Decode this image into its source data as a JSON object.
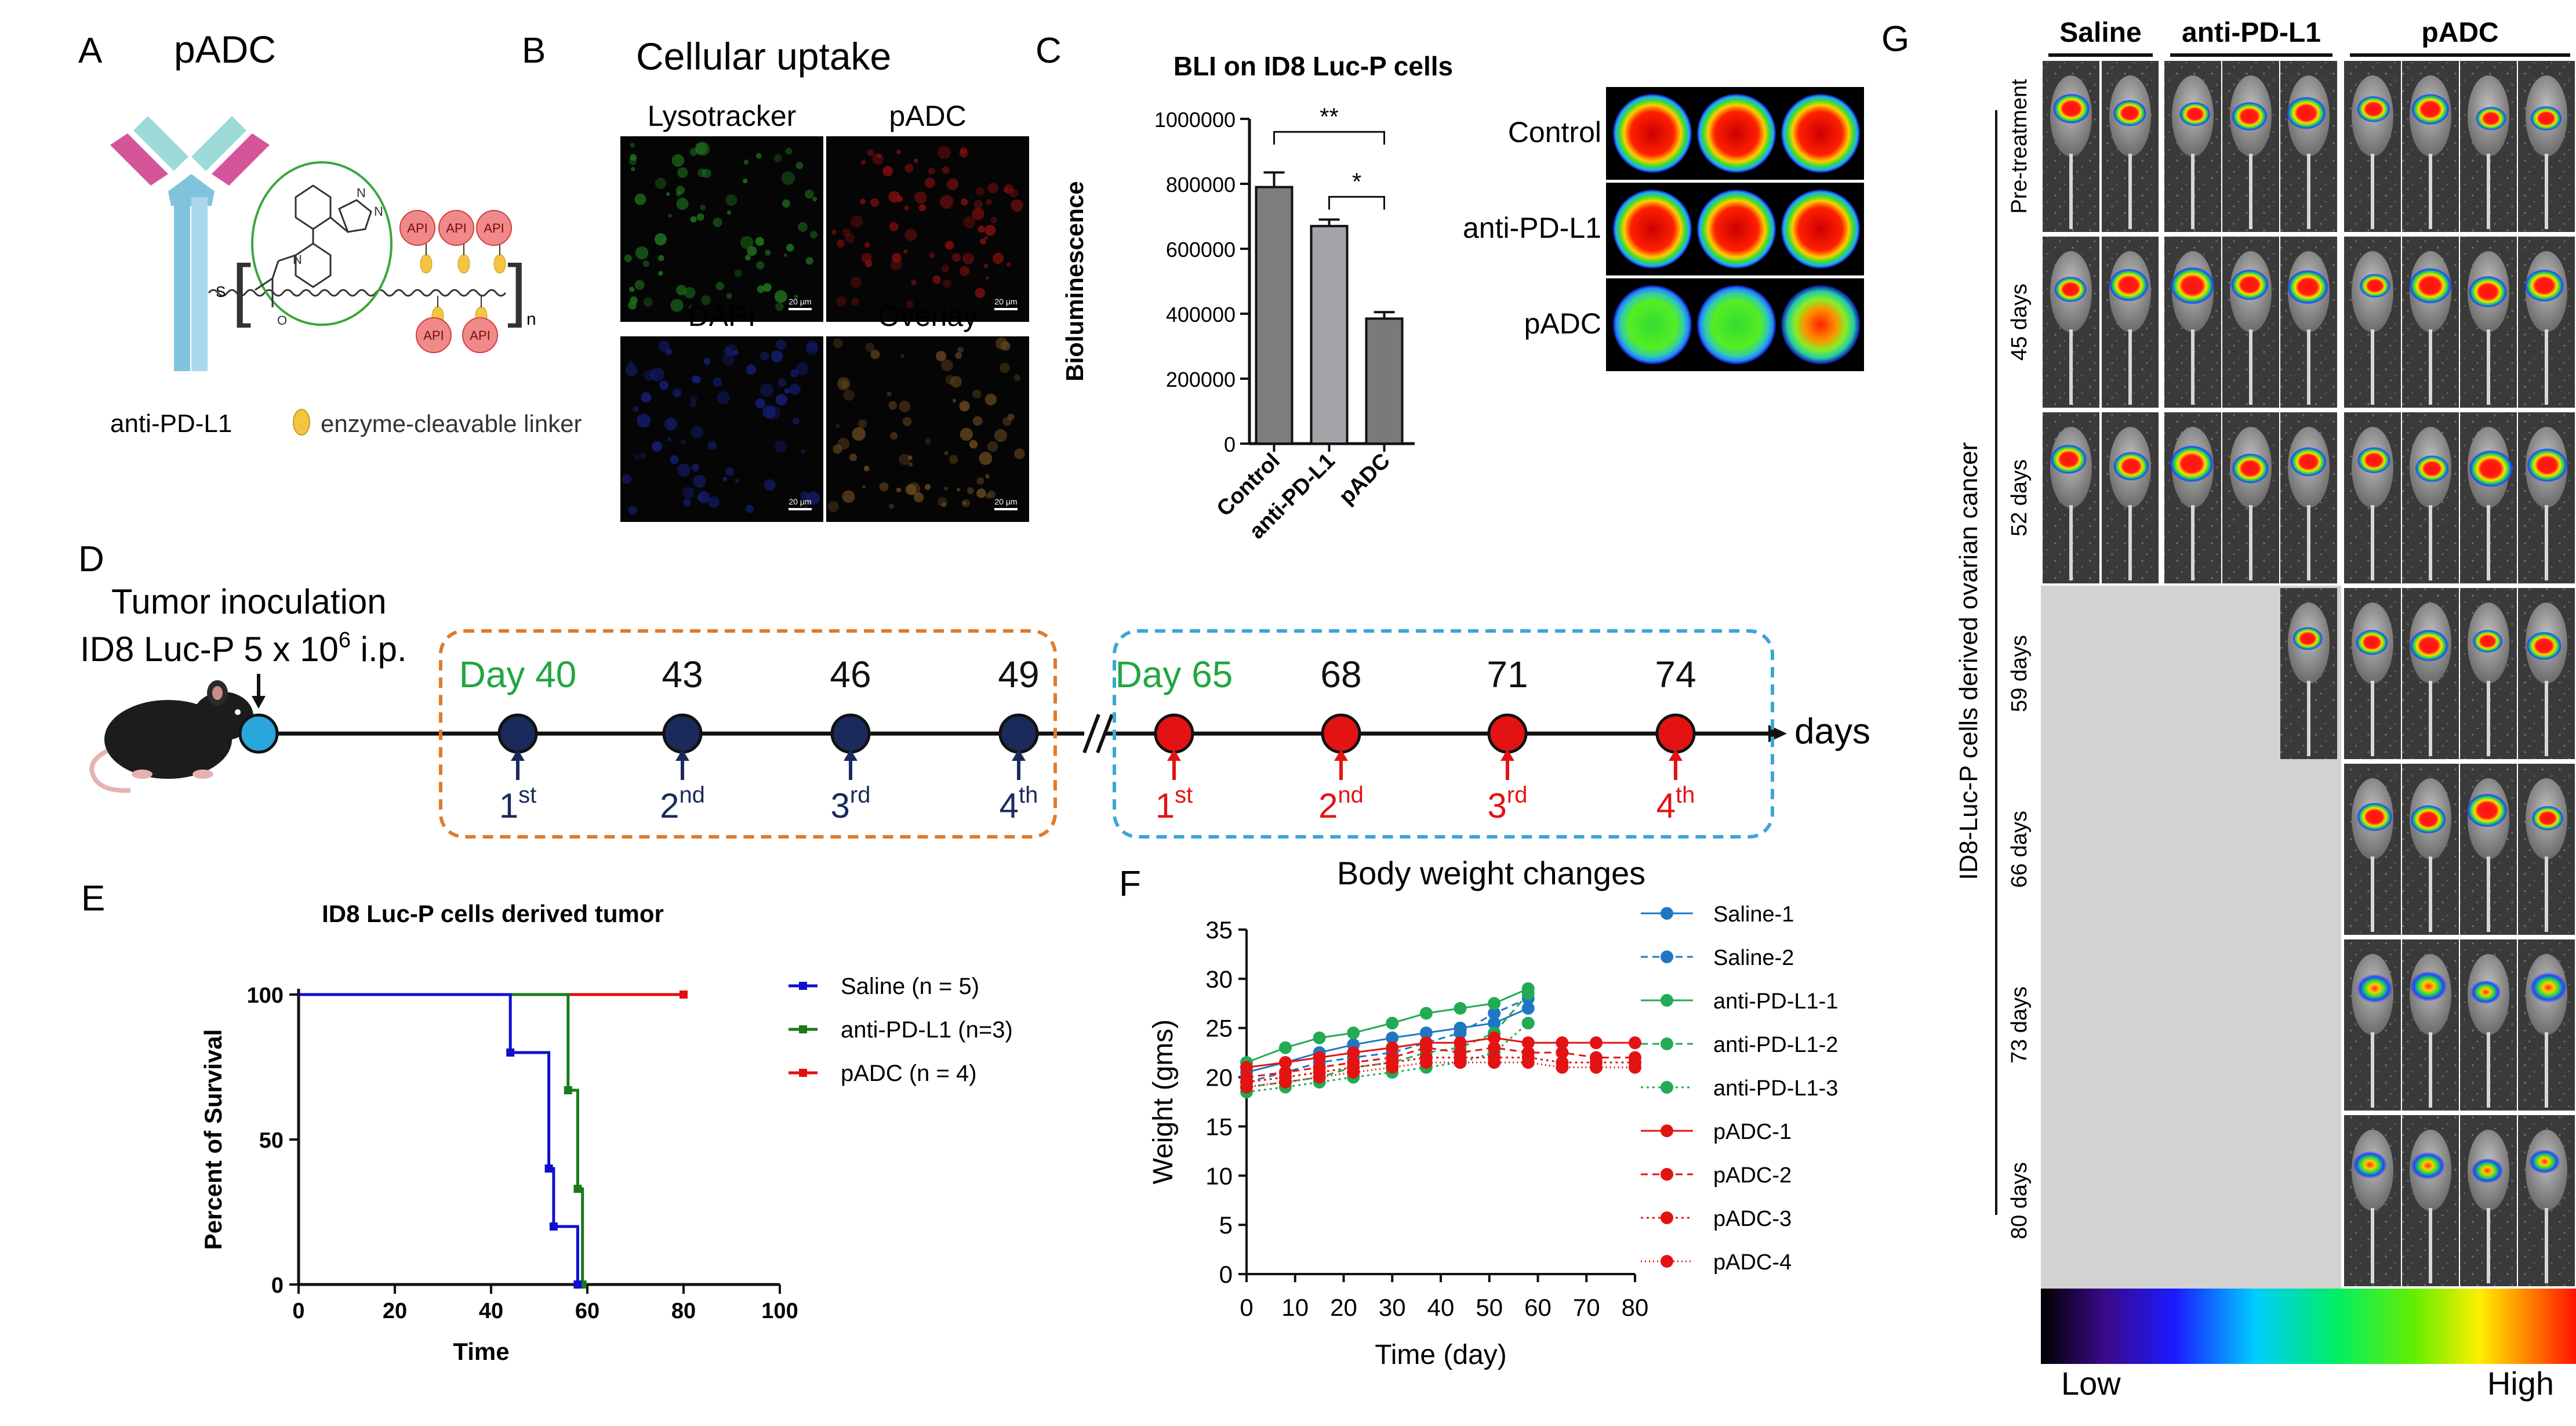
{
  "panel_letters": {
    "A": "A",
    "B": "B",
    "C": "C",
    "D": "D",
    "E": "E",
    "F": "F",
    "G": "G"
  },
  "panelA": {
    "title": "pADC",
    "api": "API",
    "antibody_label": "anti-PD-L1",
    "linker_label": "enzyme-cleavable linker",
    "n": "n",
    "s": "S"
  },
  "panelB": {
    "title": "Cellular uptake",
    "images": [
      {
        "label": "Lysotracker",
        "scalebar": "20 μm",
        "tint": "#1f7a1f"
      },
      {
        "label": "pADC",
        "scalebar": "20 μm",
        "tint": "#8a1010"
      },
      {
        "label": "DAPI",
        "scalebar": "20 μm",
        "tint": "#15207a"
      },
      {
        "label": "Overlay",
        "scalebar": "20 μm",
        "tint": "#6a4a20"
      }
    ]
  },
  "panelC": {
    "wells": [
      "Control",
      "anti-PD-L1",
      "pADC"
    ],
    "well_colors": [
      [
        "#d40000",
        "#d40000",
        "#d40000"
      ],
      [
        "#e01000",
        "#e01000",
        "#e01000"
      ],
      [
        "#20c020",
        "#30d030",
        "#e03000"
      ]
    ]
  },
  "panelD": {
    "inoculation_line1": "Tumor inoculation",
    "inoculation_line2_pre": "ID8 Luc-P 5 x 10",
    "inoculation_sup": "6",
    "inoculation_line2_post": " i.p.",
    "days_label": "days",
    "cycle1": {
      "days": [
        "Day 40",
        "43",
        "46",
        "49"
      ],
      "doses": [
        {
          "n": "1",
          "s": "st"
        },
        {
          "n": "2",
          "s": "nd"
        },
        {
          "n": "3",
          "s": "rd"
        },
        {
          "n": "4",
          "s": "th"
        }
      ],
      "box_color": "#e07a2a",
      "dot_color": "#1a2a5a"
    },
    "cycle2": {
      "days": [
        "Day 65",
        "68",
        "71",
        "74"
      ],
      "doses": [
        {
          "n": "1",
          "s": "st"
        },
        {
          "n": "2",
          "s": "nd"
        },
        {
          "n": "3",
          "s": "rd"
        },
        {
          "n": "4",
          "s": "th"
        }
      ],
      "box_color": "#3aa6d8",
      "dot_color": "#e31313"
    }
  },
  "panelG": {
    "groups": [
      "Saline",
      "anti-PD-L1",
      "pADC"
    ],
    "timepoints": [
      "Pre-treatment",
      "45 days",
      "52 days",
      "59 days",
      "66 days",
      "73 days",
      "80 days"
    ],
    "axis_label": "ID8-Luc-P cells derived ovarian cancer",
    "scale_low": "Low",
    "scale_high": "High"
  },
  "chart_data": [
    {
      "type": "bar",
      "panel": "C",
      "title": "BLI on ID8 Luc-P cells",
      "ylabel": "Bioluminescence",
      "xlabel": "",
      "categories": [
        "Control",
        "anti-PD-L1",
        "pADC"
      ],
      "values": [
        790000,
        670000,
        385000
      ],
      "errors": [
        45000,
        20000,
        20000
      ],
      "ylim": [
        0,
        1000000
      ],
      "yticks": [
        0,
        200000,
        400000,
        600000,
        800000,
        1000000
      ],
      "ytick_labels": [
        "0",
        "200000",
        "400000",
        "600000",
        "800000",
        "1000000"
      ],
      "bar_colors": [
        "#7d7d7d",
        "#a3a3a8",
        "#7a7a7a"
      ],
      "significance": [
        {
          "from": "Control",
          "to": "pADC",
          "label": "**"
        },
        {
          "from": "anti-PD-L1",
          "to": "pADC",
          "label": "*"
        }
      ]
    },
    {
      "type": "line",
      "panel": "E",
      "title": "ID8 Luc-P cells derived tumor",
      "xlabel": "Time",
      "ylabel": "Percent of Survival",
      "xlim": [
        0,
        100
      ],
      "ylim": [
        0,
        100
      ],
      "xticks": [
        0,
        20,
        40,
        60,
        80,
        100
      ],
      "yticks": [
        0,
        50,
        100
      ],
      "series": [
        {
          "name": "Saline (n = 5)",
          "color": "#1010cc",
          "x": [
            0,
            44,
            44,
            52,
            52,
            53,
            53,
            58,
            58
          ],
          "y": [
            100,
            100,
            80,
            80,
            40,
            40,
            20,
            20,
            0
          ],
          "censor": [
            [
              44,
              80
            ],
            [
              52,
              40
            ],
            [
              53,
              20
            ],
            [
              58,
              0
            ]
          ]
        },
        {
          "name": "anti-PD-L1 (n=3)",
          "color": "#1a7a1a",
          "x": [
            0,
            56,
            56,
            58,
            58,
            59,
            59
          ],
          "y": [
            100,
            100,
            67,
            67,
            33,
            33,
            0
          ],
          "censor": [
            [
              56,
              67
            ],
            [
              58,
              33
            ],
            [
              59,
              0
            ]
          ]
        },
        {
          "name": "pADC (n = 4)",
          "color": "#e01010",
          "x": [
            0,
            80
          ],
          "y": [
            100,
            100
          ],
          "censor": [
            [
              80,
              100
            ]
          ]
        }
      ]
    },
    {
      "type": "line",
      "panel": "F",
      "title": "Body weight changes",
      "xlabel": "Time (day)",
      "ylabel": "Weight (gms)",
      "xlim": [
        0,
        80
      ],
      "ylim": [
        0,
        35
      ],
      "xticks": [
        0,
        10,
        20,
        30,
        40,
        50,
        60,
        70,
        80
      ],
      "yticks": [
        0,
        5,
        10,
        15,
        20,
        25,
        30,
        35
      ],
      "series": [
        {
          "name": "Saline-1",
          "color": "#1f77c4",
          "dash": "",
          "x": [
            0,
            8,
            15,
            22,
            30,
            37,
            44,
            51,
            58
          ],
          "y": [
            20.5,
            21.5,
            22.5,
            23.3,
            24.0,
            24.5,
            25.0,
            25.5,
            27.0
          ]
        },
        {
          "name": "Saline-2",
          "color": "#1f77c4",
          "dash": "12,8",
          "x": [
            0,
            8,
            15,
            22,
            30,
            37,
            44,
            51,
            58
          ],
          "y": [
            19.5,
            20.5,
            21.5,
            22.0,
            22.5,
            23.5,
            24.5,
            26.5,
            28.0
          ]
        },
        {
          "name": "anti-PD-L1-1",
          "color": "#22aa55",
          "dash": "",
          "x": [
            0,
            8,
            15,
            22,
            30,
            37,
            44,
            51,
            58
          ],
          "y": [
            21.5,
            23.0,
            24.0,
            24.5,
            25.5,
            26.5,
            27.0,
            27.5,
            29.0
          ]
        },
        {
          "name": "anti-PD-L1-2",
          "color": "#22aa55",
          "dash": "12,8",
          "x": [
            0,
            8,
            15,
            22,
            30,
            37,
            44,
            51,
            58
          ],
          "y": [
            19.0,
            19.5,
            20.0,
            21.0,
            21.5,
            22.5,
            23.0,
            24.5,
            28.5
          ]
        },
        {
          "name": "anti-PD-L1-3",
          "color": "#22aa55",
          "dash": "4,6",
          "x": [
            0,
            8,
            15,
            22,
            30,
            37,
            44,
            51,
            58
          ],
          "y": [
            18.5,
            19.0,
            19.5,
            20.0,
            20.5,
            21.0,
            21.5,
            22.5,
            25.5
          ]
        },
        {
          "name": "pADC-1",
          "color": "#e31313",
          "dash": "",
          "x": [
            0,
            8,
            15,
            22,
            30,
            37,
            44,
            51,
            58,
            65,
            72,
            80
          ],
          "y": [
            21.0,
            21.5,
            22.0,
            22.5,
            23.0,
            23.5,
            23.5,
            24.0,
            23.5,
            23.5,
            23.5,
            23.5
          ]
        },
        {
          "name": "pADC-2",
          "color": "#e31313",
          "dash": "12,8",
          "x": [
            0,
            8,
            15,
            22,
            30,
            37,
            44,
            51,
            58,
            65,
            72,
            80
          ],
          "y": [
            20.0,
            20.5,
            21.0,
            21.5,
            22.0,
            23.0,
            22.5,
            23.0,
            22.5,
            22.5,
            22.0,
            22.0
          ]
        },
        {
          "name": "pADC-3",
          "color": "#e31313",
          "dash": "4,6",
          "x": [
            0,
            8,
            15,
            22,
            30,
            37,
            44,
            51,
            58,
            65,
            72,
            80
          ],
          "y": [
            19.5,
            20.0,
            20.5,
            21.0,
            21.5,
            22.0,
            22.0,
            22.0,
            22.0,
            21.5,
            21.5,
            21.5
          ]
        },
        {
          "name": "pADC-4",
          "color": "#e31313",
          "dash": "2,5",
          "x": [
            0,
            8,
            15,
            22,
            30,
            37,
            44,
            51,
            58,
            65,
            72,
            80
          ],
          "y": [
            19.0,
            19.5,
            20.0,
            20.5,
            21.0,
            21.5,
            21.5,
            21.5,
            21.5,
            21.0,
            21.0,
            21.0
          ]
        }
      ]
    }
  ]
}
